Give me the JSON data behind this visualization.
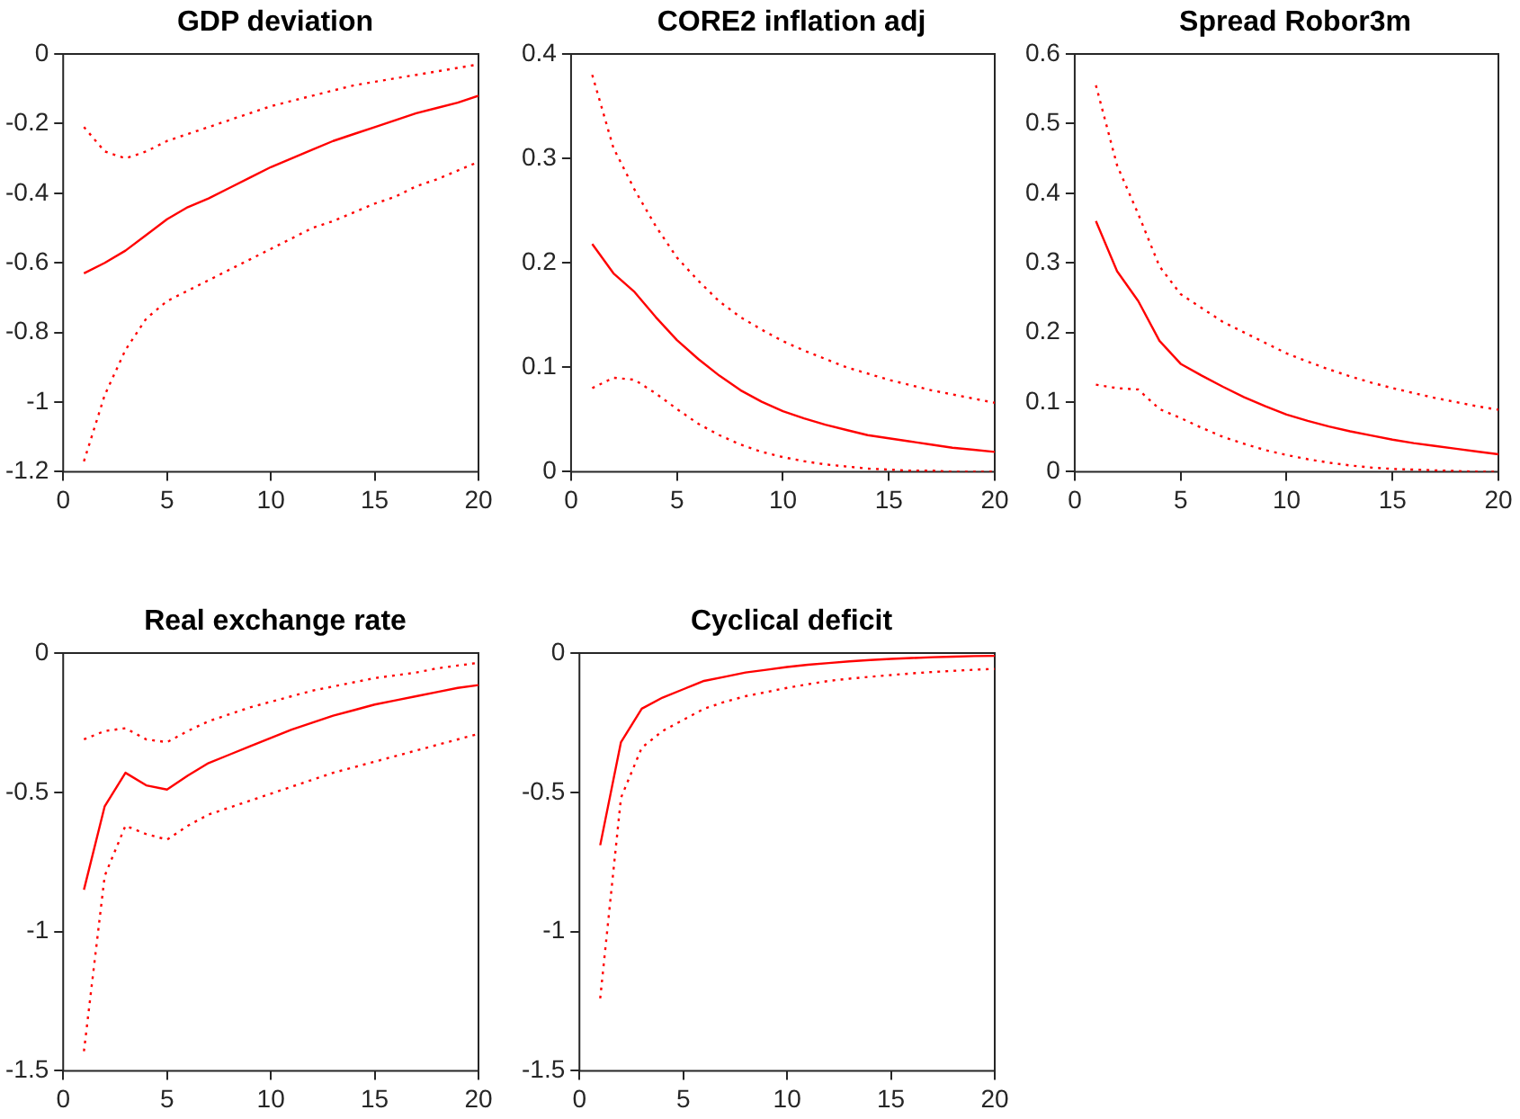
{
  "chart_data": [
    {
      "type": "line",
      "title": "GDP deviation",
      "x": [
        1,
        2,
        3,
        4,
        5,
        6,
        7,
        8,
        9,
        10,
        11,
        12,
        13,
        14,
        15,
        16,
        17,
        18,
        19,
        20
      ],
      "xlim": [
        0,
        20
      ],
      "xticks": [
        0,
        5,
        10,
        15,
        20
      ],
      "ylim": [
        -1.2,
        0
      ],
      "yticks": [
        -1.2,
        -1,
        -0.8,
        -0.6,
        -0.4,
        -0.2,
        0
      ],
      "series": [
        {
          "color": "#ff0000",
          "line_style": "solid",
          "values": [
            -0.63,
            -0.6,
            -0.565,
            -0.52,
            -0.475,
            -0.44,
            -0.415,
            -0.385,
            -0.355,
            -0.325,
            -0.3,
            -0.275,
            -0.25,
            -0.23,
            -0.21,
            -0.19,
            -0.17,
            -0.155,
            -0.14,
            -0.12
          ]
        },
        {
          "color": "#ff0000",
          "line_style": "dotted",
          "values": [
            -0.21,
            -0.28,
            -0.3,
            -0.28,
            -0.25,
            -0.23,
            -0.21,
            -0.19,
            -0.17,
            -0.15,
            -0.135,
            -0.12,
            -0.105,
            -0.09,
            -0.08,
            -0.07,
            -0.06,
            -0.05,
            -0.04,
            -0.03
          ]
        },
        {
          "color": "#ff0000",
          "line_style": "dotted",
          "values": [
            -1.17,
            -0.98,
            -0.85,
            -0.76,
            -0.71,
            -0.68,
            -0.65,
            -0.62,
            -0.59,
            -0.56,
            -0.53,
            -0.5,
            -0.48,
            -0.455,
            -0.43,
            -0.41,
            -0.38,
            -0.36,
            -0.335,
            -0.31
          ]
        }
      ]
    },
    {
      "type": "line",
      "title": "CORE2 inflation adj",
      "x": [
        1,
        2,
        3,
        4,
        5,
        6,
        7,
        8,
        9,
        10,
        11,
        12,
        13,
        14,
        15,
        16,
        17,
        18,
        19,
        20
      ],
      "xlim": [
        0,
        20
      ],
      "xticks": [
        0,
        5,
        10,
        15,
        20
      ],
      "ylim": [
        0,
        0.4
      ],
      "yticks": [
        0,
        0.1,
        0.2,
        0.3,
        0.4
      ],
      "series": [
        {
          "color": "#ff0000",
          "line_style": "solid",
          "values": [
            0.218,
            0.19,
            0.172,
            0.148,
            0.126,
            0.108,
            0.092,
            0.078,
            0.067,
            0.058,
            0.051,
            0.045,
            0.04,
            0.035,
            0.032,
            0.029,
            0.026,
            0.023,
            0.021,
            0.019
          ]
        },
        {
          "color": "#ff0000",
          "line_style": "dotted",
          "values": [
            0.38,
            0.31,
            0.27,
            0.235,
            0.205,
            0.183,
            0.163,
            0.148,
            0.136,
            0.125,
            0.116,
            0.108,
            0.1,
            0.094,
            0.088,
            0.083,
            0.078,
            0.074,
            0.07,
            0.066
          ]
        },
        {
          "color": "#ff0000",
          "line_style": "dotted",
          "values": [
            0.08,
            0.09,
            0.088,
            0.075,
            0.06,
            0.046,
            0.035,
            0.026,
            0.019,
            0.014,
            0.01,
            0.007,
            0.005,
            0.003,
            0.002,
            0.001,
            0.001,
            0,
            0,
            0
          ]
        }
      ]
    },
    {
      "type": "line",
      "title": "Spread Robor3m",
      "x": [
        1,
        2,
        3,
        4,
        5,
        6,
        7,
        8,
        9,
        10,
        11,
        12,
        13,
        14,
        15,
        16,
        17,
        18,
        19,
        20
      ],
      "xlim": [
        0,
        20
      ],
      "xticks": [
        0,
        5,
        10,
        15,
        20
      ],
      "ylim": [
        0,
        0.6
      ],
      "yticks": [
        0,
        0.1,
        0.2,
        0.3,
        0.4,
        0.5,
        0.6
      ],
      "series": [
        {
          "color": "#ff0000",
          "line_style": "solid",
          "values": [
            0.36,
            0.288,
            0.245,
            0.188,
            0.155,
            0.138,
            0.122,
            0.107,
            0.094,
            0.082,
            0.073,
            0.065,
            0.058,
            0.052,
            0.046,
            0.041,
            0.037,
            0.033,
            0.029,
            0.025
          ]
        },
        {
          "color": "#ff0000",
          "line_style": "dotted",
          "values": [
            0.555,
            0.44,
            0.37,
            0.295,
            0.255,
            0.235,
            0.215,
            0.2,
            0.185,
            0.17,
            0.158,
            0.147,
            0.137,
            0.128,
            0.12,
            0.113,
            0.106,
            0.1,
            0.094,
            0.089
          ]
        },
        {
          "color": "#ff0000",
          "line_style": "dotted",
          "values": [
            0.125,
            0.12,
            0.118,
            0.09,
            0.077,
            0.063,
            0.05,
            0.04,
            0.031,
            0.024,
            0.018,
            0.013,
            0.009,
            0.006,
            0.004,
            0.003,
            0.002,
            0.001,
            0,
            0
          ]
        }
      ]
    },
    {
      "type": "line",
      "title": "Real exchange rate",
      "x": [
        1,
        2,
        3,
        4,
        5,
        6,
        7,
        8,
        9,
        10,
        11,
        12,
        13,
        14,
        15,
        16,
        17,
        18,
        19,
        20
      ],
      "xlim": [
        0,
        20
      ],
      "xticks": [
        0,
        5,
        10,
        15,
        20
      ],
      "ylim": [
        -1.5,
        0
      ],
      "yticks": [
        -1.5,
        -1,
        -0.5,
        0
      ],
      "series": [
        {
          "color": "#ff0000",
          "line_style": "solid",
          "values": [
            -0.85,
            -0.55,
            -0.43,
            -0.475,
            -0.49,
            -0.44,
            -0.395,
            -0.365,
            -0.335,
            -0.305,
            -0.275,
            -0.25,
            -0.225,
            -0.205,
            -0.185,
            -0.17,
            -0.155,
            -0.14,
            -0.125,
            -0.115
          ]
        },
        {
          "color": "#ff0000",
          "line_style": "dotted",
          "values": [
            -0.31,
            -0.28,
            -0.27,
            -0.31,
            -0.32,
            -0.28,
            -0.245,
            -0.22,
            -0.195,
            -0.175,
            -0.155,
            -0.135,
            -0.12,
            -0.105,
            -0.09,
            -0.08,
            -0.07,
            -0.055,
            -0.045,
            -0.035
          ]
        },
        {
          "color": "#ff0000",
          "line_style": "dotted",
          "values": [
            -1.43,
            -0.8,
            -0.62,
            -0.65,
            -0.67,
            -0.62,
            -0.58,
            -0.555,
            -0.53,
            -0.505,
            -0.48,
            -0.455,
            -0.43,
            -0.41,
            -0.39,
            -0.37,
            -0.35,
            -0.33,
            -0.31,
            -0.29
          ]
        }
      ]
    },
    {
      "type": "line",
      "title": "Cyclical deficit",
      "x": [
        1,
        2,
        3,
        4,
        5,
        6,
        7,
        8,
        9,
        10,
        11,
        12,
        13,
        14,
        15,
        16,
        17,
        18,
        19,
        20
      ],
      "xlim": [
        0,
        20
      ],
      "xticks": [
        0,
        5,
        10,
        15,
        20
      ],
      "ylim": [
        -1.5,
        0
      ],
      "yticks": [
        -1.5,
        -1,
        -0.5,
        0
      ],
      "series": [
        {
          "color": "#ff0000",
          "line_style": "solid",
          "values": [
            -0.69,
            -0.32,
            -0.2,
            -0.16,
            -0.13,
            -0.1,
            -0.085,
            -0.07,
            -0.06,
            -0.05,
            -0.042,
            -0.036,
            -0.03,
            -0.025,
            -0.021,
            -0.018,
            -0.015,
            -0.013,
            -0.011,
            -0.01
          ]
        },
        {
          "color": "#ff0000",
          "line_style": "dotted",
          "values": [
            -1.24,
            -0.52,
            -0.34,
            -0.28,
            -0.24,
            -0.2,
            -0.175,
            -0.155,
            -0.14,
            -0.125,
            -0.112,
            -0.1,
            -0.092,
            -0.085,
            -0.079,
            -0.073,
            -0.068,
            -0.064,
            -0.06,
            -0.057
          ]
        }
      ]
    }
  ]
}
